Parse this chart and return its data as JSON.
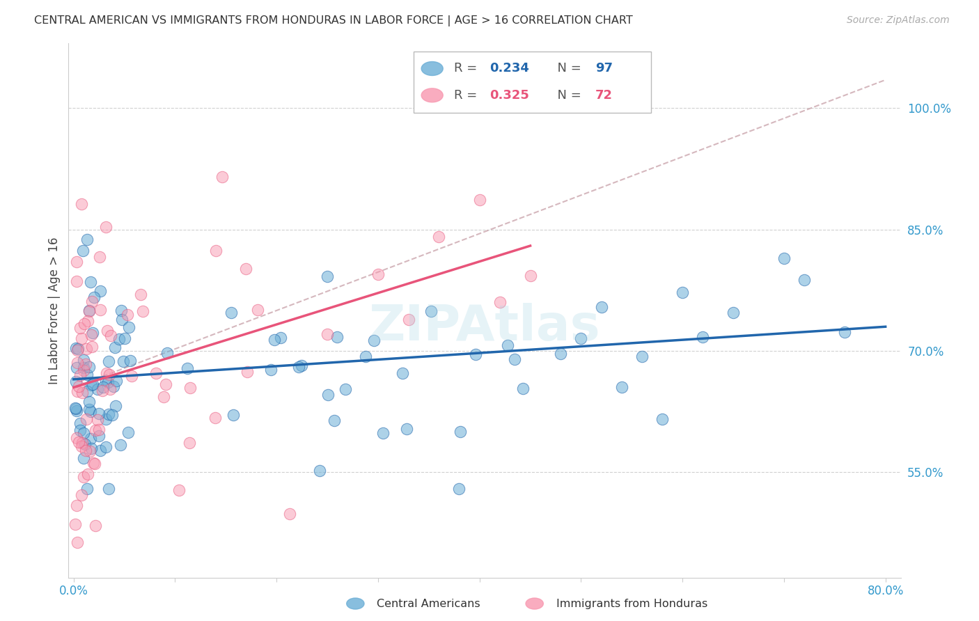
{
  "title": "CENTRAL AMERICAN VS IMMIGRANTS FROM HONDURAS IN LABOR FORCE | AGE > 16 CORRELATION CHART",
  "source": "Source: ZipAtlas.com",
  "ylabel": "In Labor Force | Age > 16",
  "ytick_labels": [
    "55.0%",
    "70.0%",
    "85.0%",
    "100.0%"
  ],
  "ytick_values": [
    0.55,
    0.7,
    0.85,
    1.0
  ],
  "xlim": [
    -0.005,
    0.815
  ],
  "ylim": [
    0.42,
    1.08
  ],
  "color_blue": "#6baed6",
  "color_pink": "#f898b0",
  "color_blue_line": "#2166ac",
  "color_pink_line": "#e8547a",
  "color_dashed": "#c8a0a8",
  "watermark": "ZIPAtlas",
  "legend_blue_r": "0.234",
  "legend_blue_n": "97",
  "legend_pink_r": "0.325",
  "legend_pink_n": "72",
  "blue_line_x0": 0.0,
  "blue_line_y0": 0.665,
  "blue_line_x1": 0.8,
  "blue_line_y1": 0.73,
  "pink_line_x0": 0.0,
  "pink_line_y0": 0.655,
  "pink_line_x1": 0.45,
  "pink_line_y1": 0.83,
  "dash_line_x0": 0.0,
  "dash_line_y0": 0.655,
  "dash_line_x1": 0.8,
  "dash_line_y1": 1.035
}
